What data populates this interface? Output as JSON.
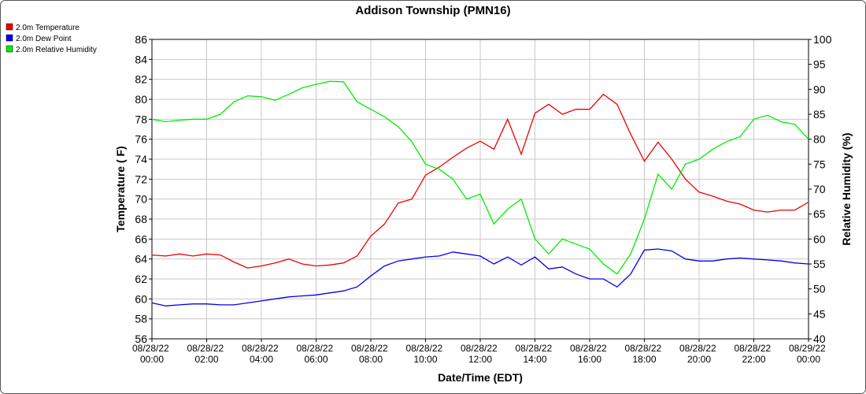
{
  "chart_data": {
    "type": "line",
    "title": "Addison Township (PMN16)",
    "xlabel": "Date/Time (EDT)",
    "ylabel": "Temperature ( F)",
    "y2label": "Relative Humidity (%)",
    "x": [
      "08/28/22 00:00",
      "08/28/22 00:30",
      "08/28/22 01:00",
      "08/28/22 01:30",
      "08/28/22 02:00",
      "08/28/22 02:30",
      "08/28/22 03:00",
      "08/28/22 03:30",
      "08/28/22 04:00",
      "08/28/22 04:30",
      "08/28/22 05:00",
      "08/28/22 05:30",
      "08/28/22 06:00",
      "08/28/22 06:30",
      "08/28/22 07:00",
      "08/28/22 07:30",
      "08/28/22 08:00",
      "08/28/22 08:30",
      "08/28/22 09:00",
      "08/28/22 09:30",
      "08/28/22 10:00",
      "08/28/22 10:30",
      "08/28/22 11:00",
      "08/28/22 11:30",
      "08/28/22 12:00",
      "08/28/22 12:30",
      "08/28/22 13:00",
      "08/28/22 13:30",
      "08/28/22 14:00",
      "08/28/22 14:30",
      "08/28/22 15:00",
      "08/28/22 15:30",
      "08/28/22 16:00",
      "08/28/22 16:30",
      "08/28/22 17:00",
      "08/28/22 17:30",
      "08/28/22 18:00",
      "08/28/22 18:30",
      "08/28/22 19:00",
      "08/28/22 19:30",
      "08/28/22 20:00",
      "08/28/22 20:30",
      "08/28/22 21:00",
      "08/28/22 21:30",
      "08/28/22 22:00",
      "08/28/22 22:30",
      "08/28/22 23:00",
      "08/28/22 23:30",
      "08/29/22 00:00"
    ],
    "series": [
      {
        "name": "2.0m Temperature",
        "color": "#ee0000",
        "values": [
          64.4,
          64.3,
          64.5,
          64.3,
          64.5,
          64.4,
          63.7,
          63.1,
          63.3,
          63.6,
          64.0,
          63.5,
          63.3,
          63.4,
          63.6,
          64.3,
          66.3,
          67.5,
          69.6,
          70.0,
          72.4,
          73.2,
          74.2,
          75.1,
          75.8,
          75.0,
          78.0,
          74.5,
          78.6,
          79.5,
          78.5,
          79.0,
          79.0,
          80.5,
          79.5,
          76.5,
          73.8,
          75.7,
          74.0,
          72.0,
          70.7,
          70.3,
          69.8,
          69.5,
          68.9,
          68.7,
          68.9,
          68.9,
          69.7
        ]
      },
      {
        "name": "2.0m Dew Point",
        "color": "#0000ee",
        "values": [
          59.6,
          59.3,
          59.4,
          59.5,
          59.5,
          59.4,
          59.4,
          59.6,
          59.8,
          60.0,
          60.2,
          60.3,
          60.4,
          60.6,
          60.8,
          61.2,
          62.3,
          63.3,
          63.8,
          64.0,
          64.2,
          64.3,
          64.7,
          64.5,
          64.3,
          63.5,
          64.2,
          63.4,
          64.2,
          63.0,
          63.2,
          62.5,
          62.0,
          62.0,
          61.2,
          62.5,
          64.9,
          65.0,
          64.8,
          64.0,
          63.8,
          63.8,
          64.0,
          64.1,
          64.0,
          63.9,
          63.8,
          63.6,
          63.5
        ]
      },
      {
        "name": "2.0m Relative Humidity",
        "color": "#00ee00",
        "axis": "y2",
        "values": [
          84,
          83.5,
          83.8,
          84,
          84,
          85,
          87.5,
          88.7,
          88.5,
          87.8,
          89,
          90.3,
          91,
          91.6,
          91.5,
          87.5,
          86,
          84.5,
          82.5,
          79.5,
          75,
          74,
          72,
          68,
          69,
          63,
          66,
          68,
          60,
          57,
          60,
          59,
          58,
          55,
          53,
          57,
          64,
          73,
          70,
          75,
          76,
          78,
          79.5,
          80.5,
          84,
          84.8,
          83.5,
          83,
          80
        ]
      }
    ],
    "ylim": [
      56,
      86
    ],
    "yticks": [
      56,
      58,
      60,
      62,
      64,
      66,
      68,
      70,
      72,
      74,
      76,
      78,
      80,
      82,
      84,
      86
    ],
    "y2lim": [
      40,
      100
    ],
    "y2ticks": [
      40,
      45,
      50,
      55,
      60,
      65,
      70,
      75,
      80,
      85,
      90,
      95,
      100
    ],
    "grid": true
  }
}
